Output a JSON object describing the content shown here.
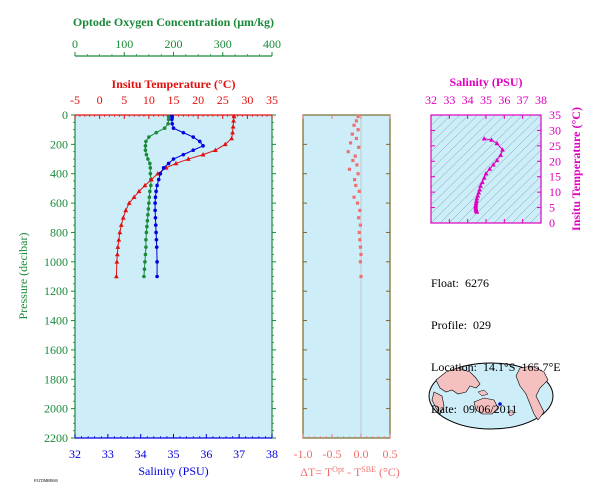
{
  "colors": {
    "oxygen": "#1a8a3a",
    "temperature": "#e01010",
    "salinity": "#0000e0",
    "delta": "#f07070",
    "ts": "#e000c0",
    "panel_bg": "#cdeef8",
    "land": "#f5c0c0",
    "axis_main": "#1a8a3a",
    "delta_axis": "#f07070",
    "ts_axis": "#e000c0"
  },
  "float_info": {
    "float_label": "Float:",
    "float_value": "6276",
    "profile_label": "Profile:",
    "profile_value": "029",
    "location_label": "Location:",
    "location_value": "14.1°S  165.7°E",
    "date_label": "Date:",
    "date_value": "09/06/2011"
  },
  "chart_data": [
    {
      "type": "line",
      "name": "profile",
      "ylabel": "Pressure (decibar)",
      "ylim": [
        2200,
        0
      ],
      "yticks": [
        "0",
        "200",
        "400",
        "600",
        "800",
        "1000",
        "1200",
        "1400",
        "1600",
        "1800",
        "2000",
        "2200"
      ],
      "axes": {
        "oxygen": {
          "label": "Optode Oxygen Concentration (μm/kg)",
          "lim": [
            0,
            400
          ],
          "ticks": [
            "0",
            "100",
            "200",
            "300",
            "400"
          ]
        },
        "temperature": {
          "label": "Insitu Temperature (°C)",
          "lim": [
            -5,
            35
          ],
          "ticks": [
            "-5",
            "0",
            "5",
            "10",
            "15",
            "20",
            "25",
            "30",
            "35"
          ]
        },
        "salinity": {
          "label": "Salinity (PSU)",
          "lim": [
            32,
            38
          ],
          "ticks": [
            "32",
            "33",
            "34",
            "35",
            "36",
            "37",
            "38"
          ]
        }
      },
      "series": [
        {
          "key": "oxygen",
          "marker": "circle",
          "x": [
            190,
            190,
            189,
            182,
            165,
            150,
            144,
            143,
            143,
            145,
            148,
            152,
            153,
            153,
            154,
            154,
            152,
            151,
            150,
            149,
            148,
            147,
            146,
            145,
            144,
            144,
            143,
            142,
            141,
            140
          ],
          "y": [
            10,
            30,
            60,
            90,
            120,
            150,
            180,
            210,
            240,
            270,
            300,
            330,
            360,
            400,
            440,
            480,
            520,
            560,
            600,
            640,
            680,
            720,
            760,
            800,
            850,
            900,
            950,
            1000,
            1050,
            1100
          ]
        },
        {
          "key": "temperature",
          "marker": "triangle",
          "x": [
            27.3,
            27.2,
            27.1,
            27.0,
            26.8,
            25.5,
            23.5,
            21.0,
            18.0,
            15.5,
            13.5,
            11.8,
            10.5,
            9.2,
            8.0,
            7.0,
            6.0,
            5.3,
            4.8,
            4.4,
            4.1,
            3.9,
            3.7,
            3.6,
            3.5,
            3.4
          ],
          "y": [
            10,
            40,
            80,
            120,
            160,
            200,
            240,
            270,
            300,
            330,
            360,
            400,
            440,
            480,
            520,
            560,
            600,
            650,
            700,
            750,
            800,
            850,
            900,
            950,
            1000,
            1100
          ]
        },
        {
          "key": "salinity",
          "marker": "circle",
          "x": [
            34.95,
            34.95,
            34.96,
            35.0,
            35.3,
            35.6,
            35.8,
            35.9,
            35.6,
            35.3,
            35.0,
            34.85,
            34.7,
            34.6,
            34.55,
            34.5,
            34.47,
            34.45,
            34.44,
            34.44,
            34.45,
            34.46,
            34.47,
            34.48,
            34.49,
            34.5,
            34.5
          ],
          "y": [
            10,
            30,
            60,
            90,
            120,
            150,
            180,
            210,
            240,
            270,
            300,
            330,
            360,
            400,
            440,
            480,
            520,
            560,
            600,
            650,
            700,
            750,
            800,
            850,
            900,
            1000,
            1100
          ]
        }
      ]
    },
    {
      "type": "scatter",
      "name": "delta-t",
      "xlabel": "ΔT= T^Opt - T^SBE (°C)",
      "xlabel_parts": [
        "ΔT= T",
        "Opt",
        " - T",
        "SBE",
        " (°C)"
      ],
      "xlim": [
        -1.0,
        0.5
      ],
      "xticks": [
        "-1.0",
        "-0.5",
        "0.0",
        "0.5"
      ],
      "ylim": [
        2200,
        0
      ],
      "x": [
        -0.05,
        -0.08,
        -0.12,
        -0.05,
        -0.15,
        -0.08,
        -0.18,
        -0.04,
        -0.22,
        -0.1,
        -0.14,
        -0.07,
        -0.2,
        -0.05,
        -0.11,
        -0.09,
        -0.03,
        -0.12,
        -0.06,
        -0.02,
        -0.04,
        -0.01,
        -0.03,
        -0.02,
        -0.01,
        0.0,
        -0.01,
        0.0
      ],
      "y": [
        10,
        40,
        70,
        100,
        130,
        160,
        190,
        220,
        250,
        280,
        310,
        340,
        370,
        400,
        440,
        480,
        520,
        560,
        600,
        650,
        700,
        750,
        800,
        850,
        900,
        950,
        1000,
        1100
      ]
    },
    {
      "type": "scatter",
      "name": "ts-diagram",
      "xlabel": "Salinity (PSU)",
      "ylabel": "Insitu Temperature (°C)",
      "xlim": [
        32,
        38
      ],
      "ylim": [
        0,
        35
      ],
      "xticks": [
        "32",
        "33",
        "34",
        "35",
        "36",
        "37",
        "38"
      ],
      "yticks": [
        "0",
        "5",
        "10",
        "15",
        "20",
        "25",
        "30",
        "35"
      ],
      "x": [
        34.9,
        35.3,
        35.6,
        35.9,
        35.8,
        35.6,
        35.4,
        35.2,
        35.0,
        34.9,
        34.8,
        34.7,
        34.65,
        34.6,
        34.55,
        34.5,
        34.48,
        34.46,
        34.45,
        34.44,
        34.44,
        34.45,
        34.46,
        34.47,
        34.5
      ],
      "y": [
        27.3,
        26.9,
        25.8,
        23.7,
        22.0,
        20.3,
        18.9,
        17.5,
        16.0,
        14.6,
        13.2,
        12.0,
        10.8,
        9.8,
        8.8,
        7.9,
        7.1,
        6.5,
        5.9,
        5.4,
        5.0,
        4.6,
        4.2,
        3.9,
        3.6
      ]
    }
  ],
  "footer_text": "PLTDMBR00S"
}
